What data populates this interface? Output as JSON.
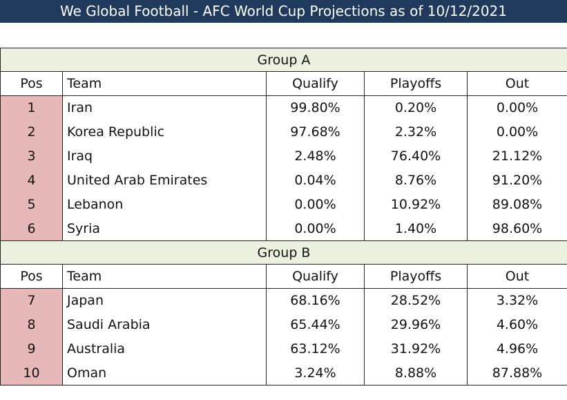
{
  "title": "We Global Football - AFC World Cup Projections as of 10/12/2021",
  "columns": {
    "pos": "Pos",
    "team": "Team",
    "qualify": "Qualify",
    "playoffs": "Playoffs",
    "out": "Out"
  },
  "groups": [
    {
      "name": "Group A",
      "rows": [
        {
          "pos": "1",
          "team": "Iran",
          "qualify": "99.80%",
          "playoffs": "0.20%",
          "out": "0.00%"
        },
        {
          "pos": "2",
          "team": "Korea Republic",
          "qualify": "97.68%",
          "playoffs": "2.32%",
          "out": "0.00%"
        },
        {
          "pos": "3",
          "team": "Iraq",
          "qualify": "2.48%",
          "playoffs": "76.40%",
          "out": "21.12%"
        },
        {
          "pos": "4",
          "team": "United Arab Emirates",
          "qualify": "0.04%",
          "playoffs": "8.76%",
          "out": "91.20%"
        },
        {
          "pos": "5",
          "team": "Lebanon",
          "qualify": "0.00%",
          "playoffs": "10.92%",
          "out": "89.08%"
        },
        {
          "pos": "6",
          "team": "Syria",
          "qualify": "0.00%",
          "playoffs": "1.40%",
          "out": "98.60%"
        }
      ]
    },
    {
      "name": "Group B",
      "rows": [
        {
          "pos": "7",
          "team": "Japan",
          "qualify": "68.16%",
          "playoffs": "28.52%",
          "out": "3.32%"
        },
        {
          "pos": "8",
          "team": "Saudi Arabia",
          "qualify": "65.44%",
          "playoffs": "29.96%",
          "out": "4.60%"
        },
        {
          "pos": "9",
          "team": "Australia",
          "qualify": "63.12%",
          "playoffs": "31.92%",
          "out": "4.96%"
        },
        {
          "pos": "10",
          "team": "Oman",
          "qualify": "3.24%",
          "playoffs": "8.88%",
          "out": "87.88%"
        }
      ]
    }
  ]
}
